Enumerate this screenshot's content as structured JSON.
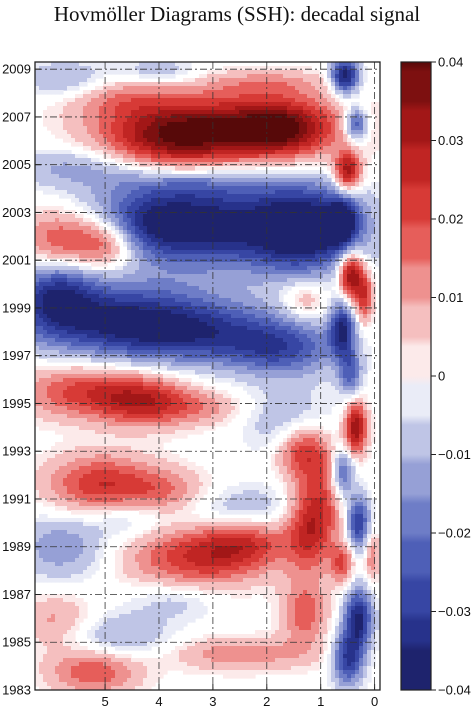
{
  "chart_data": {
    "type": "heatmap",
    "title": "Hovmöller Diagrams (SSH): decadal signal",
    "xlabel": "",
    "ylabel": "",
    "x_ticks": [
      5,
      4,
      3,
      2,
      1,
      0
    ],
    "x_range": [
      6.3,
      -0.1
    ],
    "y_ticks": [
      1983,
      1985,
      1987,
      1989,
      1991,
      1993,
      1995,
      1997,
      1999,
      2001,
      2003,
      2005,
      2007,
      2009
    ],
    "y_range": [
      1983,
      2009.3
    ],
    "colorbar": {
      "ticks": [
        -0.04,
        -0.03,
        -0.02,
        -0.01,
        0,
        0.01,
        0.02,
        0.03,
        0.04
      ],
      "tick_labels": [
        "−0.04",
        "−0.03",
        "−0.02",
        "−0.01",
        "0",
        "0.01",
        "0.02",
        "0.03",
        "0.04"
      ],
      "range": [
        -0.04,
        0.04
      ],
      "colors": [
        "#1a1b5e",
        "#2b3a9a",
        "#5a6bc0",
        "#aab2dd",
        "#ffffff",
        "#f2aaaa",
        "#e2443f",
        "#b51a1a",
        "#6a0c0c"
      ]
    },
    "grid": true,
    "grid_dashed": true,
    "features": [
      {
        "x": 2.7,
        "y": 2002.4,
        "value": -0.033,
        "sx": 1.5,
        "sy": 1.3
      },
      {
        "x": 1.3,
        "y": 2002.3,
        "value": -0.03,
        "sx": 0.6,
        "sy": 1.2
      },
      {
        "x": 4.2,
        "y": 2002.6,
        "value": -0.022,
        "sx": 0.9,
        "sy": 0.9
      },
      {
        "x": 4.8,
        "y": 1998.6,
        "value": -0.03,
        "sx": 1.3,
        "sy": 1.1
      },
      {
        "x": 3.2,
        "y": 1997.9,
        "value": -0.024,
        "sx": 1.3,
        "sy": 0.9
      },
      {
        "x": 1.7,
        "y": 1997.2,
        "value": -0.02,
        "sx": 0.7,
        "sy": 0.8
      },
      {
        "x": 5.9,
        "y": 1999.6,
        "value": -0.025,
        "sx": 0.5,
        "sy": 1.0
      },
      {
        "x": 5.5,
        "y": 2004.9,
        "value": -0.012,
        "sx": 0.9,
        "sy": 0.6
      },
      {
        "x": 3.5,
        "y": 2004.2,
        "value": -0.01,
        "sx": 1.0,
        "sy": 0.5
      },
      {
        "x": 5.8,
        "y": 1989.0,
        "value": -0.014,
        "sx": 0.6,
        "sy": 1.0
      },
      {
        "x": 4.6,
        "y": 1990.3,
        "value": -0.01,
        "sx": 0.5,
        "sy": 0.6
      },
      {
        "x": 4.8,
        "y": 1985.2,
        "value": -0.012,
        "sx": 0.7,
        "sy": 0.7
      },
      {
        "x": 3.7,
        "y": 1986.8,
        "value": -0.008,
        "sx": 0.6,
        "sy": 0.6
      },
      {
        "x": 2.5,
        "y": 1990.6,
        "value": -0.01,
        "sx": 0.8,
        "sy": 0.7
      },
      {
        "x": 1.6,
        "y": 1994.2,
        "value": -0.01,
        "sx": 0.6,
        "sy": 1.0
      },
      {
        "x": 5.7,
        "y": 2008.5,
        "value": -0.012,
        "sx": 0.6,
        "sy": 0.6
      },
      {
        "x": 4.0,
        "y": 2008.9,
        "value": -0.01,
        "sx": 0.5,
        "sy": 0.4
      },
      {
        "x": 2.7,
        "y": 2006.6,
        "value": 0.03,
        "sx": 1.4,
        "sy": 1.0
      },
      {
        "x": 3.8,
        "y": 2006.0,
        "value": 0.024,
        "sx": 0.9,
        "sy": 0.9
      },
      {
        "x": 1.7,
        "y": 2006.5,
        "value": 0.024,
        "sx": 0.6,
        "sy": 0.8
      },
      {
        "x": 4.8,
        "y": 2007.8,
        "value": 0.012,
        "sx": 0.8,
        "sy": 0.6
      },
      {
        "x": 2.0,
        "y": 2008.4,
        "value": 0.01,
        "sx": 0.8,
        "sy": 0.4
      },
      {
        "x": 5.7,
        "y": 2001.9,
        "value": 0.026,
        "sx": 0.6,
        "sy": 0.9
      },
      {
        "x": 4.9,
        "y": 2001.8,
        "value": 0.02,
        "sx": 0.4,
        "sy": 0.8
      },
      {
        "x": 5.3,
        "y": 1995.5,
        "value": 0.023,
        "sx": 0.9,
        "sy": 0.8
      },
      {
        "x": 4.2,
        "y": 1995.0,
        "value": 0.022,
        "sx": 0.6,
        "sy": 0.7
      },
      {
        "x": 3.1,
        "y": 1994.8,
        "value": 0.01,
        "sx": 0.5,
        "sy": 0.5
      },
      {
        "x": 5.1,
        "y": 1991.6,
        "value": 0.024,
        "sx": 0.7,
        "sy": 0.9
      },
      {
        "x": 3.9,
        "y": 1991.3,
        "value": 0.014,
        "sx": 0.6,
        "sy": 0.7
      },
      {
        "x": 3.3,
        "y": 1988.5,
        "value": 0.024,
        "sx": 0.9,
        "sy": 0.9
      },
      {
        "x": 2.4,
        "y": 1989.2,
        "value": 0.018,
        "sx": 0.6,
        "sy": 0.7
      },
      {
        "x": 1.2,
        "y": 1989.9,
        "value": 0.027,
        "sx": 0.3,
        "sy": 1.3
      },
      {
        "x": 1.3,
        "y": 1993.0,
        "value": 0.025,
        "sx": 0.35,
        "sy": 0.8
      },
      {
        "x": 1.3,
        "y": 1986.2,
        "value": 0.018,
        "sx": 0.3,
        "sy": 1.0
      },
      {
        "x": 5.2,
        "y": 1983.8,
        "value": 0.02,
        "sx": 0.6,
        "sy": 0.7
      },
      {
        "x": 2.5,
        "y": 1984.5,
        "value": 0.014,
        "sx": 0.9,
        "sy": 0.5
      },
      {
        "x": 5.9,
        "y": 1985.9,
        "value": 0.012,
        "sx": 0.5,
        "sy": 0.8
      },
      {
        "x": 0.9,
        "y": 1991.2,
        "value": 0.012,
        "sx": 0.25,
        "sy": 1.2
      },
      {
        "x": 1.3,
        "y": 1999.3,
        "value": 0.012,
        "sx": 0.3,
        "sy": 0.6
      },
      {
        "x": 0.55,
        "y": 2008.7,
        "value": -0.04,
        "sx": 0.18,
        "sy": 0.5
      },
      {
        "x": 0.35,
        "y": 2006.7,
        "value": -0.03,
        "sx": 0.15,
        "sy": 0.5
      },
      {
        "x": 0.5,
        "y": 2004.7,
        "value": 0.034,
        "sx": 0.17,
        "sy": 0.6
      },
      {
        "x": 0.6,
        "y": 2002.6,
        "value": -0.03,
        "sx": 0.2,
        "sy": 0.7
      },
      {
        "x": 0.45,
        "y": 2000.4,
        "value": 0.038,
        "sx": 0.15,
        "sy": 0.7
      },
      {
        "x": 0.2,
        "y": 1999.5,
        "value": 0.025,
        "sx": 0.12,
        "sy": 0.8
      },
      {
        "x": 0.6,
        "y": 1998.1,
        "value": -0.032,
        "sx": 0.16,
        "sy": 0.8
      },
      {
        "x": 0.45,
        "y": 1996.2,
        "value": -0.02,
        "sx": 0.15,
        "sy": 0.7
      },
      {
        "x": 0.35,
        "y": 1994.0,
        "value": 0.035,
        "sx": 0.15,
        "sy": 0.8
      },
      {
        "x": 0.6,
        "y": 1992.1,
        "value": -0.025,
        "sx": 0.15,
        "sy": 0.7
      },
      {
        "x": 0.3,
        "y": 1990.0,
        "value": -0.03,
        "sx": 0.15,
        "sy": 0.8
      },
      {
        "x": 0.6,
        "y": 1988.3,
        "value": 0.02,
        "sx": 0.15,
        "sy": 0.6
      },
      {
        "x": 0.3,
        "y": 1986.0,
        "value": -0.036,
        "sx": 0.18,
        "sy": 0.9
      },
      {
        "x": 0.5,
        "y": 1984.3,
        "value": -0.03,
        "sx": 0.2,
        "sy": 0.8
      },
      {
        "x": 0.05,
        "y": 1988.6,
        "value": 0.015,
        "sx": 0.1,
        "sy": 0.8
      }
    ]
  }
}
